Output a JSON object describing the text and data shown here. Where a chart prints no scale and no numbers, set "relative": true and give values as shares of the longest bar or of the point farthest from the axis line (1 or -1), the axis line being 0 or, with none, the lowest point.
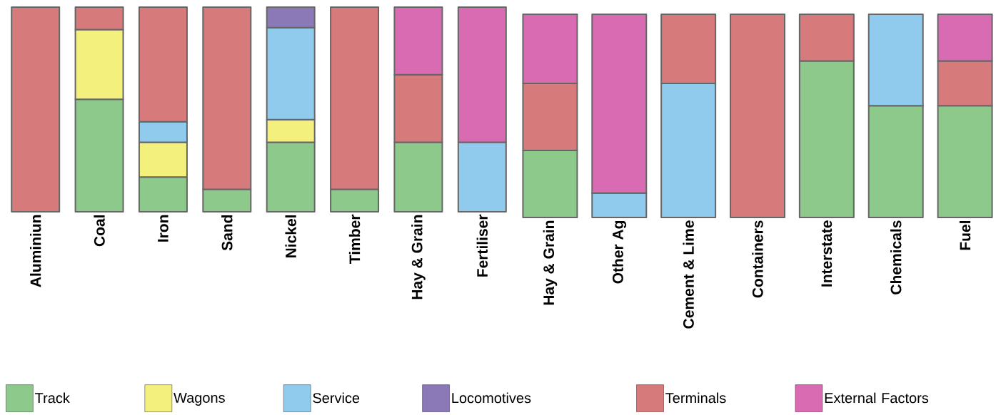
{
  "chart_data": [
    {
      "type": "bar",
      "stacked": true,
      "relative": true,
      "legend": "bottom left",
      "categories": [
        "Aluminiun",
        "Coal",
        "Iron",
        "Sand",
        "Nickel",
        "Timber",
        "Hay & Grain",
        "Fertiliser"
      ],
      "series": [
        {
          "name": "Track",
          "color": "#8cc98a",
          "values": [
            null,
            0.55,
            0.17,
            0.11,
            0.34,
            0.11,
            0.34,
            null
          ]
        },
        {
          "name": "Wagons",
          "color": "#f3f07e",
          "values": [
            null,
            0.34,
            0.17,
            null,
            0.11,
            null,
            null,
            null
          ]
        },
        {
          "name": "Service",
          "color": "#90cbee",
          "values": [
            null,
            null,
            0.1,
            null,
            0.45,
            null,
            null,
            0.34
          ]
        },
        {
          "name": "Locomotives",
          "color": "#8a79b6",
          "values": [
            null,
            null,
            null,
            null,
            0.1,
            null,
            null,
            null
          ]
        },
        {
          "color": "#d67a7c",
          "values": [
            1,
            0.11,
            0.56,
            0.89,
            null,
            0.89,
            0.33,
            null
          ]
        },
        {
          "color": "#d96bb3",
          "values": [
            null,
            null,
            null,
            null,
            null,
            null,
            0.33,
            0.66
          ]
        }
      ]
    },
    {
      "type": "bar",
      "stacked": true,
      "relative": true,
      "legend": "bottom right",
      "categories": [
        "Hay & Grain",
        "Other Ag",
        "Cement & Lime",
        "Containers",
        "Interstate",
        "Chemicals",
        "Fuel"
      ],
      "series": [
        {
          "color": "#8cc98a",
          "values": [
            0.33,
            null,
            null,
            null,
            0.77,
            0.55,
            0.55
          ]
        },
        {
          "color": "#90cbee",
          "values": [
            null,
            0.12,
            0.66,
            null,
            null,
            0.45,
            null
          ]
        },
        {
          "name": "Terminals",
          "color": "#d67a7c",
          "values": [
            0.33,
            null,
            0.34,
            1,
            0.23,
            null,
            0.22
          ]
        },
        {
          "name": "External Factors",
          "color": "#d96bb3",
          "values": [
            0.34,
            0.88,
            null,
            null,
            null,
            null,
            0.23
          ]
        }
      ]
    }
  ]
}
